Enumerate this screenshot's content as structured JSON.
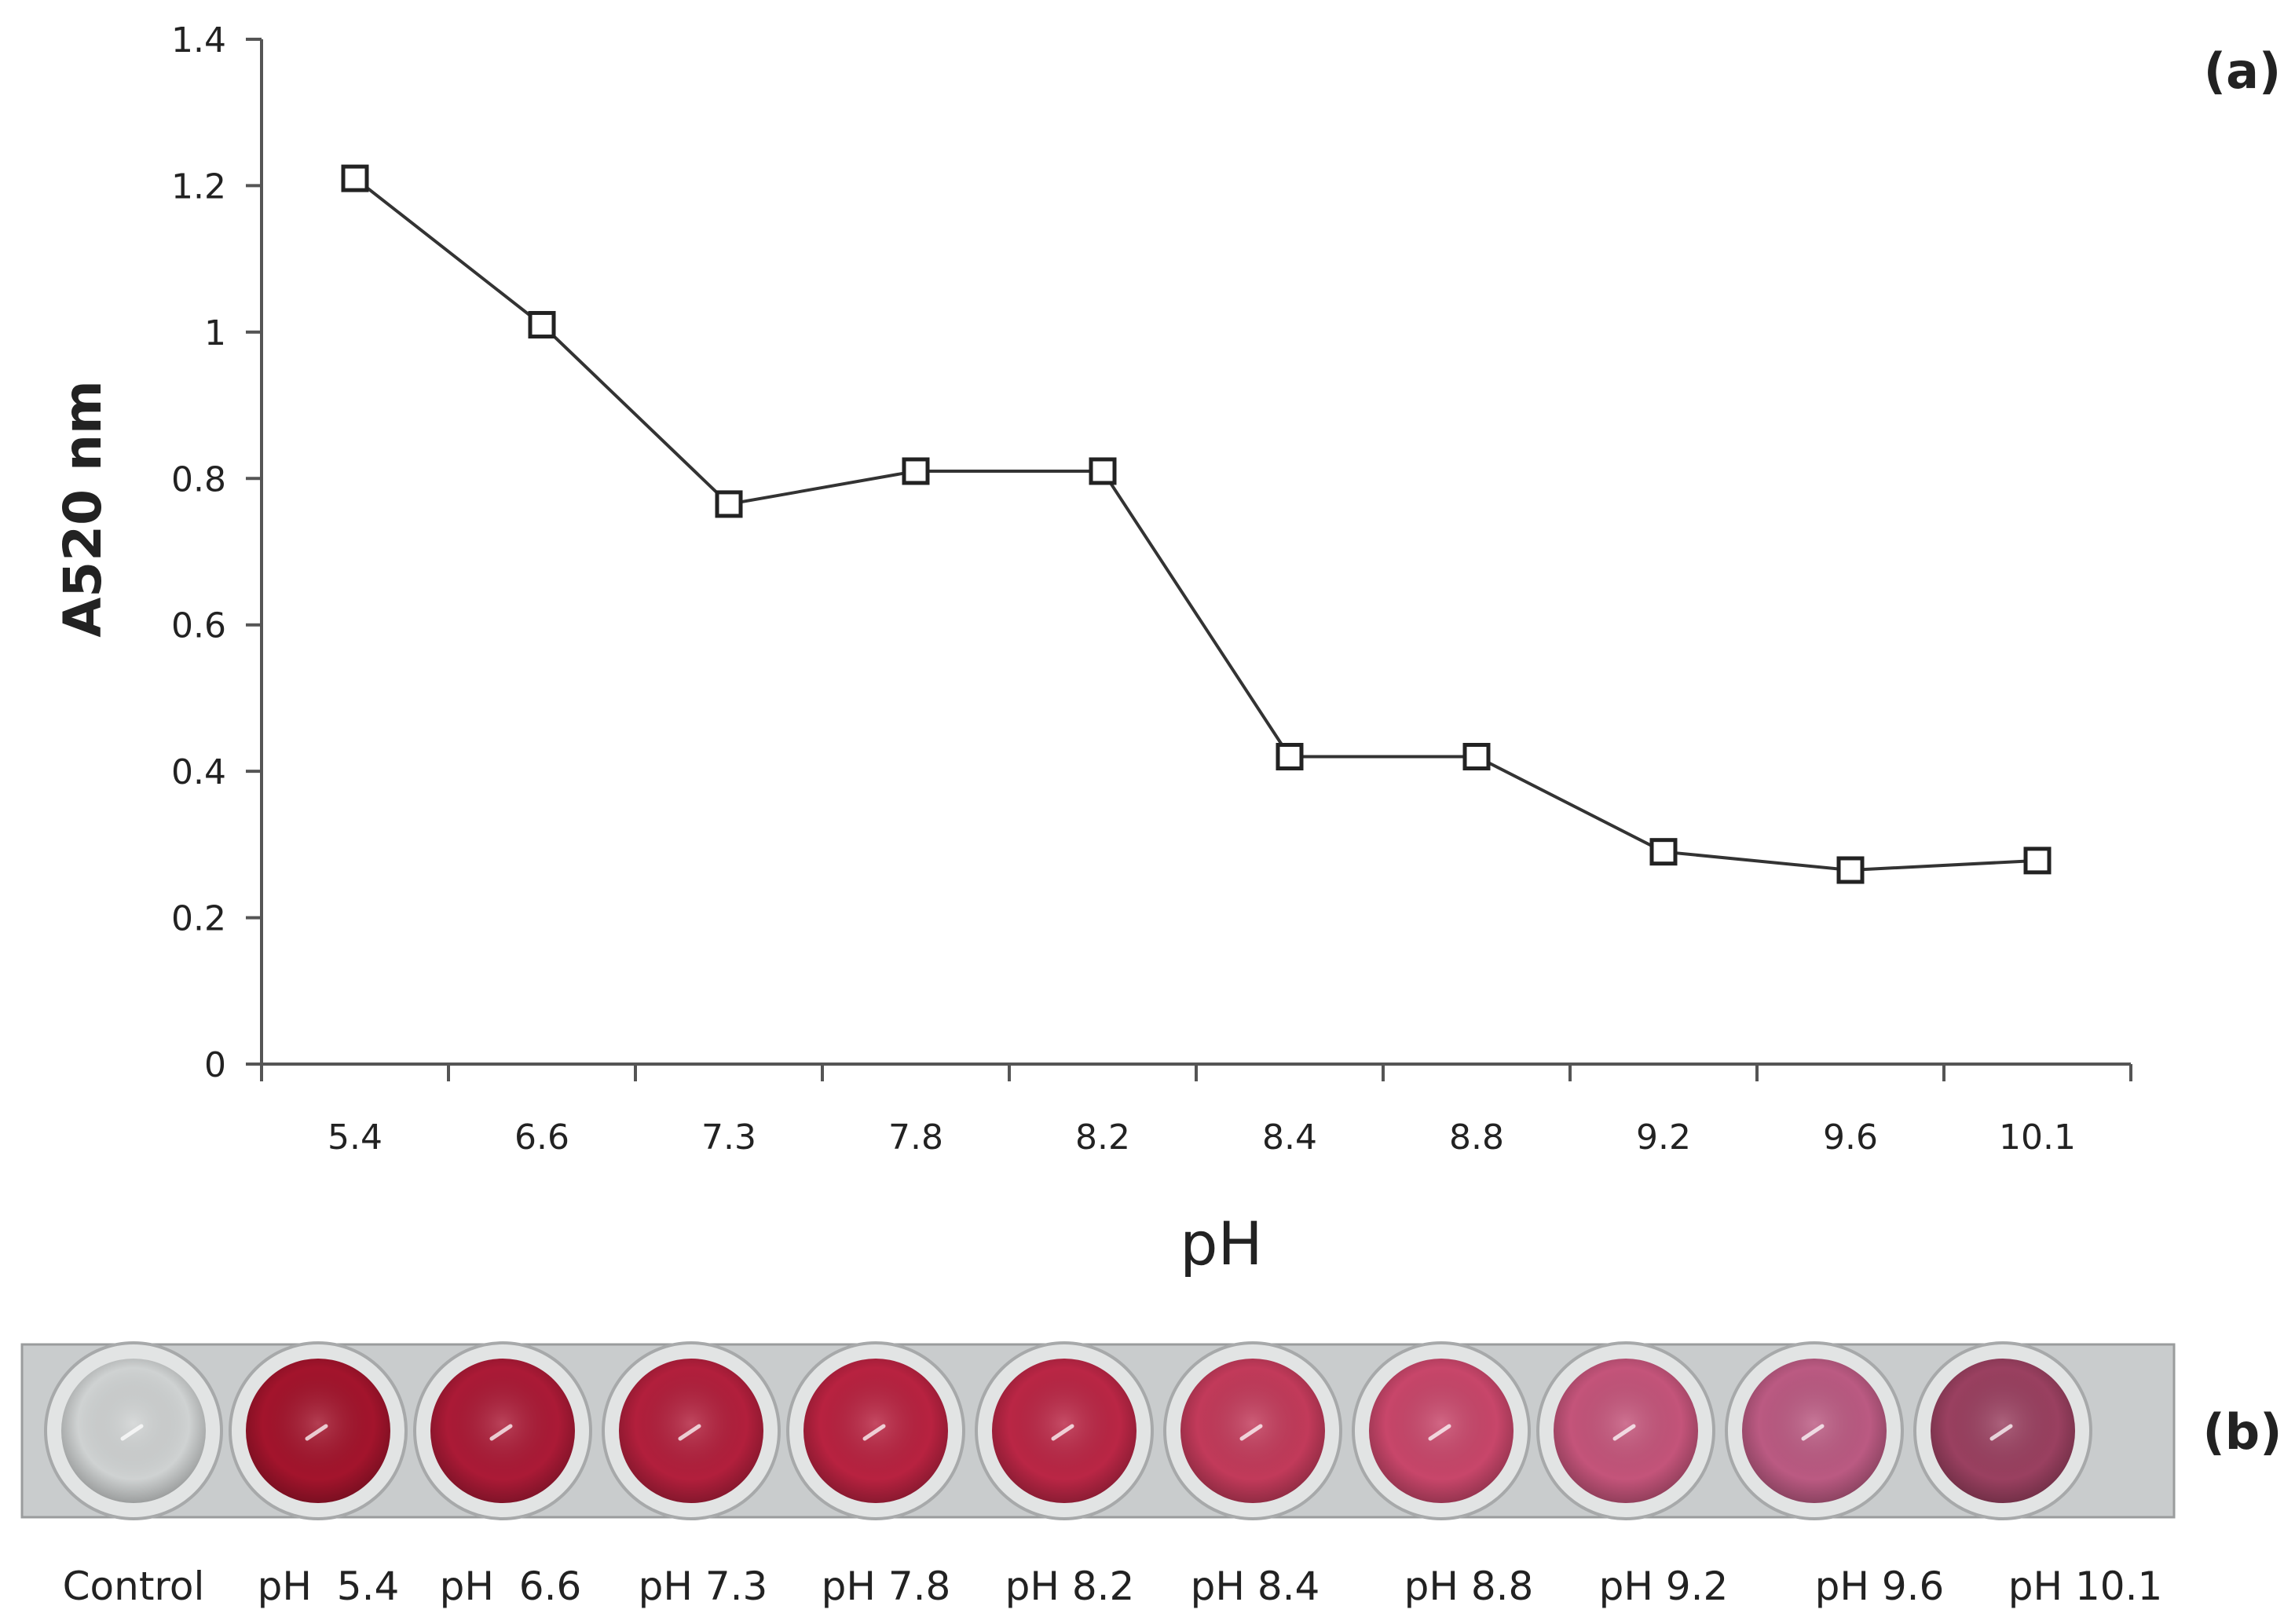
{
  "figure": {
    "panel_a_label": "(a)",
    "panel_b_label": "(b)"
  },
  "chart_data": {
    "type": "line",
    "title": "",
    "xlabel": "pH",
    "ylabel": "A520 nm",
    "categories": [
      "5.4",
      "6.6",
      "7.3",
      "7.8",
      "8.2",
      "8.4",
      "8.8",
      "9.2",
      "9.6",
      "10.1"
    ],
    "series": [
      {
        "values": [
          1.21,
          1.01,
          0.765,
          0.81,
          0.81,
          0.42,
          0.42,
          0.29,
          0.265,
          0.278
        ]
      }
    ],
    "ylim": [
      0,
      1.4
    ],
    "yticks": [
      "0",
      "0.2",
      "0.4",
      "0.6",
      "0.8",
      "1",
      "1.2",
      "1.4"
    ],
    "grid": false,
    "legend": "none",
    "marker": "open-square",
    "line_color": "#333333"
  },
  "wells": {
    "labels": [
      "Control",
      "pH  5.4",
      "pH  6.6",
      "pH 7.3",
      "pH 7.8",
      "pH 8.2",
      "pH 8.4",
      "pH 8.8",
      "pH 9.2",
      "pH 9.6",
      "pH 10.1"
    ],
    "colors": [
      "#cfd2d2",
      "#a3142c",
      "#ab1a36",
      "#b21f3c",
      "#b82240",
      "#ba2645",
      "#c23a5a",
      "#c8466a",
      "#c4547a",
      "#bb5a82",
      "#9a4060"
    ]
  }
}
